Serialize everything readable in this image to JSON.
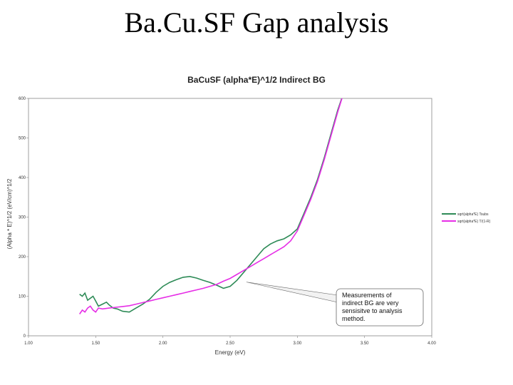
{
  "slide_title": "Ba.Cu.SF Gap analysis",
  "chart_data": {
    "type": "line",
    "title": "BaCuSF (alpha*E)^1/2 Indirect BG",
    "xlabel": "Energy (eV)",
    "ylabel": "(Alpha * E)^1/2 (eV/cm)^1/2",
    "xlim": [
      1.0,
      4.0
    ],
    "ylim": [
      0,
      600
    ],
    "xticks": [
      "1.00",
      "1.50",
      "2.00",
      "2.50",
      "3.00",
      "3.50",
      "4.00"
    ],
    "yticks": [
      "0",
      "100",
      "200",
      "300",
      "400",
      "500",
      "600"
    ],
    "grid": false,
    "legend_position": "right",
    "series": [
      {
        "name": "sqrt(alpha*E) Tsubs",
        "color": "#2e8b57",
        "x": [
          1.38,
          1.4,
          1.42,
          1.44,
          1.46,
          1.48,
          1.5,
          1.52,
          1.55,
          1.58,
          1.6,
          1.63,
          1.66,
          1.7,
          1.75,
          1.8,
          1.85,
          1.9,
          1.95,
          2.0,
          2.05,
          2.1,
          2.15,
          2.2,
          2.25,
          2.3,
          2.35,
          2.4,
          2.45,
          2.5,
          2.55,
          2.6,
          2.65,
          2.7,
          2.75,
          2.8,
          2.85,
          2.9,
          2.95,
          3.0,
          3.05,
          3.1,
          3.15,
          3.2,
          3.25,
          3.3,
          3.35
        ],
        "y": [
          105,
          100,
          108,
          90,
          95,
          100,
          88,
          75,
          80,
          85,
          78,
          70,
          68,
          62,
          60,
          70,
          80,
          92,
          110,
          125,
          135,
          142,
          148,
          150,
          146,
          140,
          135,
          128,
          120,
          125,
          140,
          160,
          180,
          200,
          220,
          232,
          240,
          245,
          255,
          270,
          310,
          350,
          395,
          450,
          510,
          570,
          620
        ]
      },
      {
        "name": "sqrt(alpha*E) T/(1-R)",
        "color": "#e62ee6",
        "x": [
          1.38,
          1.4,
          1.42,
          1.44,
          1.46,
          1.48,
          1.5,
          1.52,
          1.55,
          1.6,
          1.65,
          1.7,
          1.75,
          1.8,
          1.85,
          1.9,
          1.95,
          2.0,
          2.05,
          2.1,
          2.15,
          2.2,
          2.25,
          2.3,
          2.35,
          2.4,
          2.45,
          2.5,
          2.55,
          2.6,
          2.65,
          2.7,
          2.75,
          2.8,
          2.85,
          2.9,
          2.95,
          3.0,
          3.05,
          3.1,
          3.15,
          3.2,
          3.25,
          3.3,
          3.35
        ],
        "y": [
          55,
          65,
          60,
          70,
          75,
          65,
          60,
          70,
          68,
          70,
          72,
          74,
          76,
          80,
          84,
          88,
          92,
          96,
          100,
          104,
          108,
          112,
          116,
          120,
          125,
          130,
          138,
          145,
          155,
          165,
          175,
          185,
          195,
          205,
          215,
          225,
          240,
          265,
          305,
          345,
          390,
          445,
          505,
          565,
          620
        ]
      }
    ],
    "annotations": [
      {
        "text_lines": [
          "Measurements of",
          "indirect BG are very",
          "sensisitve to analysis",
          "method."
        ],
        "points_to_x": 2.6,
        "points_to_y": 125
      }
    ]
  }
}
